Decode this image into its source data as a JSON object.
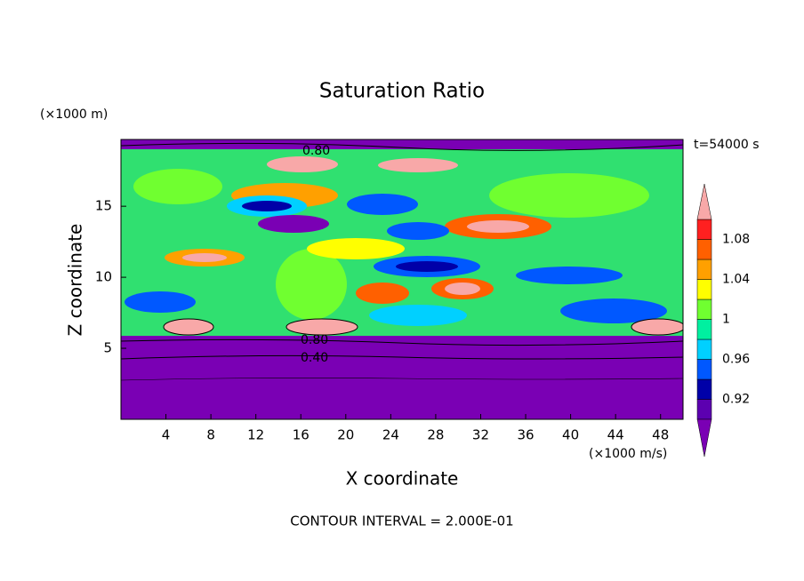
{
  "chart_data": {
    "type": "contour",
    "title": "Saturation Ratio",
    "x_label": "X coordinate",
    "y_label": "Z coordinate",
    "x_unit": "(×1000 m/s)",
    "y_unit": "(×1000 m)",
    "time_label": "t=54000 s",
    "footer": "CONTOUR INTERVAL = 2.000E-01",
    "xlim": [
      0,
      50
    ],
    "ylim": [
      0,
      19.7
    ],
    "xticks": [
      4,
      8,
      12,
      16,
      20,
      24,
      28,
      32,
      36,
      40,
      44,
      48
    ],
    "yticks": [
      5,
      10,
      15
    ],
    "contour_labels": [
      "0.80",
      "0.80",
      "0.40"
    ],
    "colorbar": {
      "levels": [
        0.9,
        0.92,
        0.94,
        0.96,
        0.98,
        1,
        1.02,
        1.04,
        1.06,
        1.08,
        1.1
      ],
      "colors": [
        "#7a00b4",
        "#5c00b0",
        "#0000a8",
        "#0058ff",
        "#00d0ff",
        "#00f0a0",
        "#70ff30",
        "#ffff00",
        "#ffa000",
        "#ff6000",
        "#ff2020",
        "#f8a8a8"
      ],
      "ticks": [
        0.92,
        0.96,
        1,
        1.04,
        1.08
      ]
    }
  }
}
